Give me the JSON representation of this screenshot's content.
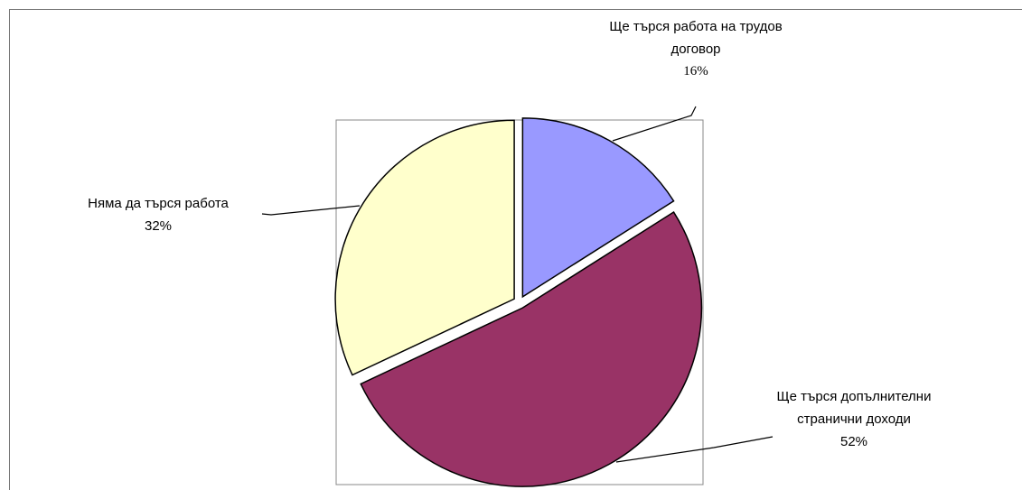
{
  "chart_data": {
    "type": "pie",
    "categories": [
      "Ще търся работа на трудов договор",
      "Ще търся допълнителни странични доходи",
      "Няма да търся работа"
    ],
    "values": [
      16,
      52,
      32
    ],
    "value_labels": [
      "16%",
      "52%",
      "32%"
    ],
    "colors": [
      "#9999ff",
      "#993366",
      "#ffffcc"
    ]
  }
}
